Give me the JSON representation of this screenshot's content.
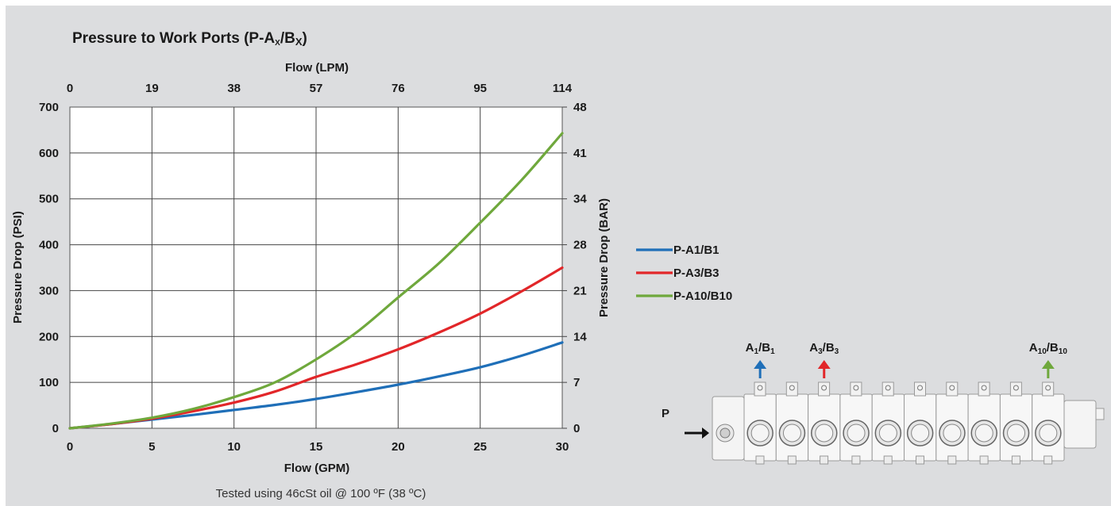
{
  "chart_data": {
    "type": "line",
    "title": "Pressure to Work Ports (P-Ax/Bx)",
    "title_main": "Pressure to Work Ports (P-A",
    "title_sub1": "X",
    "title_mid": "/B",
    "title_sub2": "X",
    "title_end": ")",
    "xlabel": "Flow (GPM)",
    "x2label": "Flow (LPM)",
    "ylabel": "Pressure Drop (PSI)",
    "y2label": "Pressure Drop (BAR)",
    "xlim": [
      0,
      30
    ],
    "ylim": [
      0,
      700
    ],
    "x_ticks": [
      "0",
      "5",
      "10",
      "15",
      "20",
      "25",
      "30"
    ],
    "x2_ticks": [
      "0",
      "19",
      "38",
      "57",
      "76",
      "95",
      "114"
    ],
    "y_ticks": [
      "0",
      "100",
      "200",
      "300",
      "400",
      "500",
      "600",
      "700"
    ],
    "y2_ticks": [
      "0",
      "7",
      "14",
      "21",
      "28",
      "34",
      "41",
      "48"
    ],
    "grid": true,
    "legend_position": "right",
    "note": "Tested using 46cSt oil @ 100 ºF (38 ºC)",
    "x": [
      0,
      2.5,
      5,
      7.5,
      10,
      12.5,
      15,
      17.5,
      20,
      22.5,
      25,
      27.5,
      30
    ],
    "series": [
      {
        "name": "P-A1/B1",
        "color": "#1f6fb8",
        "values": [
          0,
          9,
          19,
          29,
          40,
          51,
          64,
          79,
          95,
          113,
          133,
          158,
          187
        ]
      },
      {
        "name": "P-A3/B3",
        "color": "#e22629",
        "values": [
          0,
          9,
          21,
          37,
          56,
          80,
          112,
          140,
          172,
          209,
          250,
          298,
          350
        ]
      },
      {
        "name": "P-A10/B10",
        "color": "#6fa83c",
        "values": [
          0,
          10,
          23,
          42,
          68,
          100,
          150,
          210,
          285,
          360,
          448,
          540,
          643
        ]
      }
    ]
  },
  "diagram": {
    "inlet_label": "P",
    "ports": [
      {
        "main": "A",
        "sub1": "1",
        "mid": "/B",
        "sub2": "1",
        "color": "#1f6fb8"
      },
      {
        "main": "A",
        "sub1": "3",
        "mid": "/B",
        "sub2": "3",
        "color": "#e22629"
      },
      {
        "main": "A",
        "sub1": "10",
        "mid": "/B",
        "sub2": "10",
        "color": "#6fa83c"
      }
    ]
  }
}
